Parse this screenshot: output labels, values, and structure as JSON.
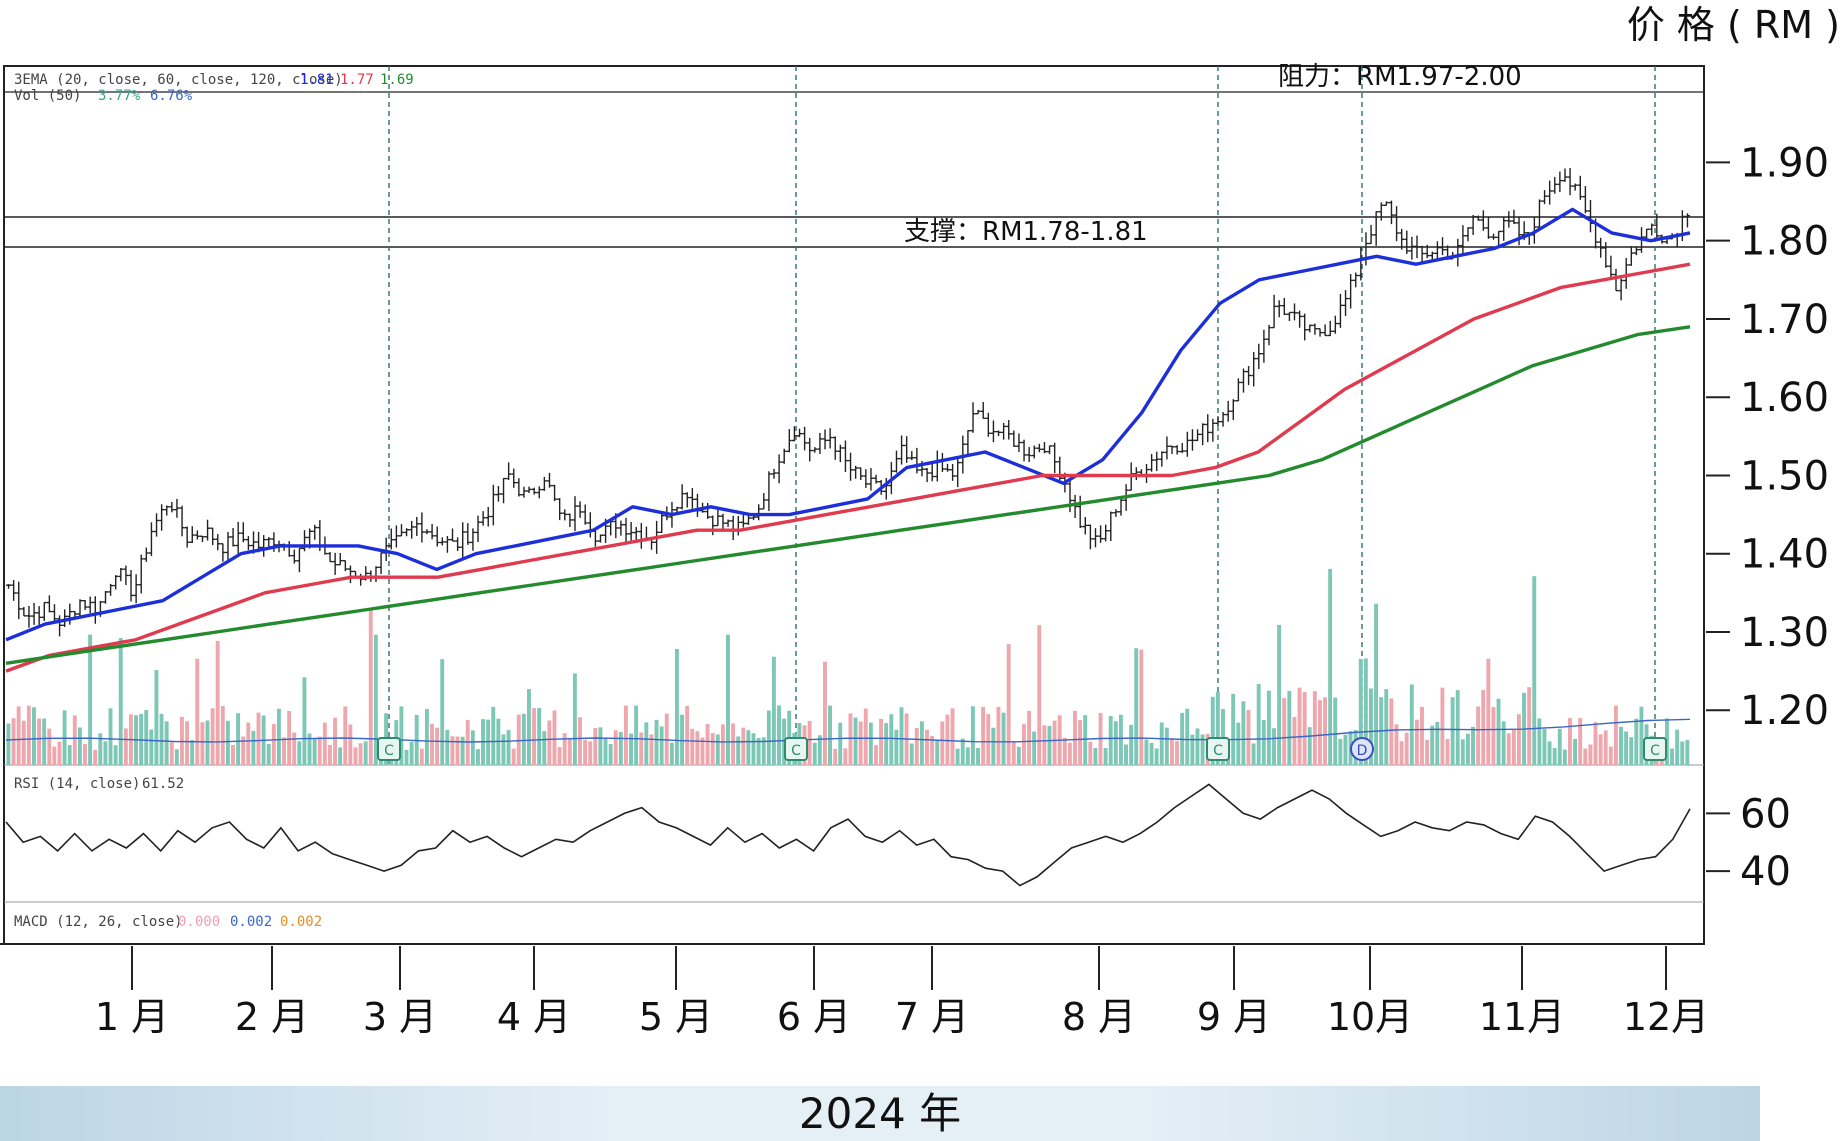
{
  "unit_label": "价 格 ( RM )",
  "footer": "2024 年",
  "colors": {
    "ema20": "#1c2fd8",
    "ema60": "#e03a4e",
    "ema120": "#238a2e",
    "vol_up": "#7cc7b5",
    "vol_down": "#eea7ad",
    "candle": "#222222",
    "band": "#c8dde9"
  },
  "indicators": {
    "ema_legend": "3EMA (20, close, 60, close, 120, close)",
    "ema_values": [
      "1.81",
      "1.77",
      "1.69"
    ],
    "vol_legend": "Vol (50)",
    "vol_values": [
      "3.77%",
      "6.76%"
    ],
    "rsi_legend": "RSI (14, close)",
    "rsi_value": "61.52",
    "macd_legend": "MACD (12, 26, close)",
    "macd_values": [
      "0.000",
      "0.002",
      "0.002"
    ]
  },
  "annotations": {
    "resistance": "阻力：RM1.97-2.00",
    "support": "支撑：RM1.78-1.81"
  },
  "event_markers": [
    "C",
    "C",
    "C",
    "D",
    "C"
  ],
  "chart_data": {
    "type": "line",
    "subtype": "candlestick_with_ema_volume_rsi",
    "xlabel": "2024 年",
    "ylabel": "价 格 ( RM )",
    "months": [
      "1 月",
      "2 月",
      "3 月",
      "4 月",
      "5 月",
      "6 月",
      "7 月",
      "8 月",
      "9 月",
      "10月",
      "11月",
      "12月"
    ],
    "ylim": [
      1.13,
      1.99
    ],
    "price_ticks": [
      "1.90",
      "1.80",
      "1.70",
      "1.60",
      "1.50",
      "1.40",
      "1.30",
      "1.20"
    ],
    "rsi_ylim": [
      30,
      75
    ],
    "rsi_ticks": [
      "60",
      "40"
    ],
    "support_lines": [
      1.81,
      1.78
    ],
    "series": [
      {
        "name": "EMA 20",
        "values": [
          1.29,
          1.31,
          1.32,
          1.33,
          1.34,
          1.37,
          1.4,
          1.41,
          1.41,
          1.41,
          1.4,
          1.38,
          1.4,
          1.41,
          1.42,
          1.43,
          1.46,
          1.45,
          1.46,
          1.45,
          1.45,
          1.46,
          1.47,
          1.51,
          1.52,
          1.53,
          1.51,
          1.49,
          1.52,
          1.58,
          1.66,
          1.72,
          1.75,
          1.76,
          1.77,
          1.78,
          1.77,
          1.78,
          1.79,
          1.81,
          1.84,
          1.81,
          1.8,
          1.81
        ]
      },
      {
        "name": "EMA 60",
        "values": [
          1.25,
          1.27,
          1.28,
          1.29,
          1.31,
          1.33,
          1.35,
          1.36,
          1.37,
          1.37,
          1.37,
          1.38,
          1.39,
          1.4,
          1.41,
          1.42,
          1.43,
          1.43,
          1.44,
          1.45,
          1.46,
          1.47,
          1.48,
          1.49,
          1.5,
          1.5,
          1.5,
          1.5,
          1.51,
          1.53,
          1.57,
          1.61,
          1.64,
          1.67,
          1.7,
          1.72,
          1.74,
          1.75,
          1.76,
          1.77
        ]
      },
      {
        "name": "EMA 120",
        "values": [
          1.26,
          1.27,
          1.28,
          1.29,
          1.3,
          1.31,
          1.32,
          1.33,
          1.34,
          1.35,
          1.36,
          1.37,
          1.38,
          1.39,
          1.4,
          1.41,
          1.42,
          1.43,
          1.44,
          1.45,
          1.46,
          1.47,
          1.48,
          1.49,
          1.5,
          1.52,
          1.55,
          1.58,
          1.61,
          1.64,
          1.66,
          1.68,
          1.69
        ]
      }
    ],
    "price_path": [
      1.36,
      1.32,
      1.33,
      1.31,
      1.34,
      1.33,
      1.38,
      1.35,
      1.43,
      1.47,
      1.42,
      1.43,
      1.41,
      1.42,
      1.41,
      1.42,
      1.4,
      1.43,
      1.39,
      1.38,
      1.37,
      1.4,
      1.42,
      1.44,
      1.42,
      1.41,
      1.43,
      1.46,
      1.5,
      1.47,
      1.5,
      1.44,
      1.46,
      1.42,
      1.44,
      1.43,
      1.42,
      1.46,
      1.48,
      1.45,
      1.44,
      1.43,
      1.46,
      1.52,
      1.56,
      1.53,
      1.55,
      1.51,
      1.49,
      1.48,
      1.53,
      1.5,
      1.51,
      1.5,
      1.58,
      1.56,
      1.55,
      1.53,
      1.54,
      1.5,
      1.44,
      1.41,
      1.46,
      1.5,
      1.52,
      1.54,
      1.54,
      1.56,
      1.58,
      1.62,
      1.66,
      1.72,
      1.7,
      1.68,
      1.69,
      1.73,
      1.8,
      1.85,
      1.8,
      1.78,
      1.79,
      1.78,
      1.83,
      1.81,
      1.82,
      1.8,
      1.86,
      1.89,
      1.85,
      1.8,
      1.74,
      1.79,
      1.82,
      1.8,
      1.84
    ],
    "rsi_values": [
      57,
      50,
      52,
      47,
      53,
      47,
      51,
      48,
      53,
      47,
      54,
      50,
      55,
      57,
      51,
      48,
      55,
      47,
      50,
      46,
      44,
      42,
      40,
      42,
      47,
      48,
      54,
      50,
      52,
      48,
      45,
      48,
      51,
      50,
      54,
      57,
      60,
      62,
      57,
      55,
      52,
      49,
      55,
      50,
      53,
      48,
      51,
      47,
      55,
      58,
      52,
      50,
      54,
      49,
      51,
      45,
      44,
      41,
      40,
      35,
      38,
      43,
      48,
      50,
      52,
      50,
      53,
      57,
      62,
      66,
      70,
      65,
      60,
      58,
      62,
      65,
      68,
      65,
      60,
      56,
      52,
      54,
      57,
      55,
      54,
      57,
      56,
      53,
      51,
      59,
      57,
      52,
      46,
      40,
      42,
      44,
      45,
      51,
      61.52
    ],
    "volume_up_days_relative": "qualitative bars; baseline ~50-day average line"
  }
}
